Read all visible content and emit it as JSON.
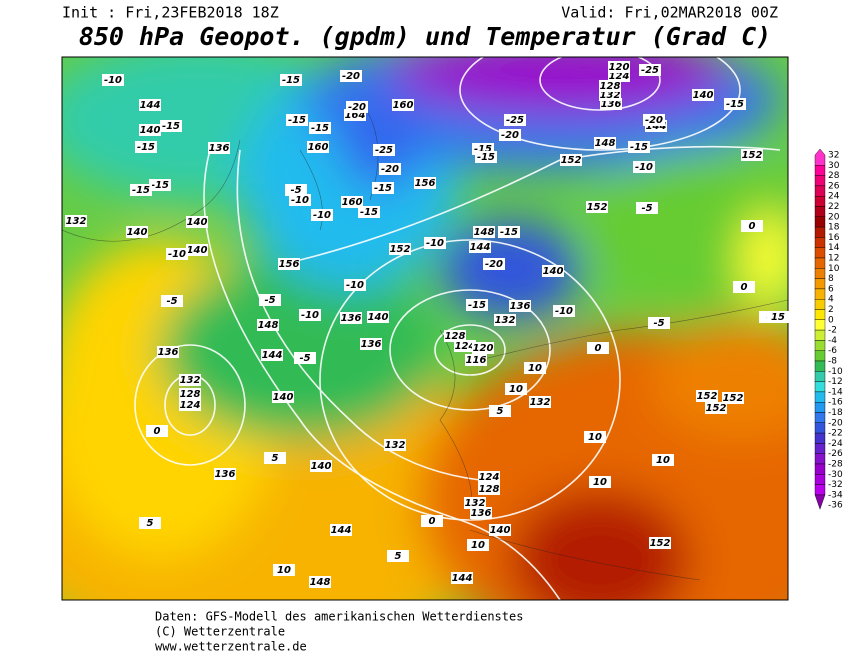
{
  "header": {
    "init": "Init : Fri,23FEB2018 18Z",
    "valid": "Valid: Fri,02MAR2018 00Z",
    "title": "850 hPa Geopot. (gpdm) und Temperatur (Grad C)"
  },
  "colorbar": {
    "levels": [
      32,
      30,
      28,
      26,
      24,
      22,
      20,
      18,
      16,
      14,
      12,
      10,
      8,
      6,
      4,
      2,
      0,
      -2,
      -4,
      -6,
      -8,
      -10,
      -12,
      -14,
      -16,
      -18,
      -20,
      -22,
      -24,
      -26,
      -28,
      -30,
      -32,
      -34,
      -36
    ],
    "colors": [
      "#ff33cc",
      "#ff0099",
      "#ee0077",
      "#dd0055",
      "#cc0033",
      "#b0001a",
      "#990000",
      "#b31a00",
      "#cc3300",
      "#dd4d00",
      "#e66600",
      "#ee8000",
      "#f59900",
      "#f7b300",
      "#f9cc00",
      "#ffe600",
      "#ffff33",
      "#ccee33",
      "#99dd33",
      "#66cc33",
      "#33bb55",
      "#33ccaa",
      "#33dddd",
      "#22bbee",
      "#2299ee",
      "#3377ee",
      "#3355dd",
      "#4433cc",
      "#6622cc",
      "#8811cc",
      "#9900cc",
      "#aa00dd",
      "#bb00ee",
      "#8800aa"
    ]
  },
  "map": {
    "height_labels": [
      144,
      140,
      136,
      140,
      140,
      140,
      156,
      152,
      148,
      144,
      140,
      136,
      132,
      128,
      124,
      120,
      116,
      132,
      128,
      124,
      136,
      144,
      140,
      140,
      136,
      136,
      140,
      144,
      144,
      148,
      132,
      152,
      152,
      152,
      152,
      152,
      152,
      152,
      148,
      140,
      136,
      136,
      132,
      124,
      128,
      132,
      160,
      160,
      160,
      156,
      164,
      140,
      144,
      148,
      136,
      132,
      128,
      124,
      120,
      132
    ],
    "temp_labels": [
      -10,
      -15,
      -20,
      -15,
      -15,
      -15,
      -15,
      -10,
      -5,
      -5,
      -5,
      -10,
      -10,
      -15,
      -15,
      -20,
      -25,
      -20,
      -15,
      -15,
      -10,
      -5,
      -10,
      -10,
      -15,
      -20,
      -15,
      -10,
      -5,
      -5,
      -10,
      -15,
      -25,
      -20,
      -15,
      -15,
      -25,
      -15,
      -20,
      0,
      0,
      0,
      0,
      0,
      5,
      5,
      5,
      10,
      10,
      10,
      5,
      10,
      10,
      10,
      10,
      0,
      15
    ]
  },
  "footer": {
    "line1": "Daten: GFS-Modell des amerikanischen Wetterdienstes",
    "line2": "(C) Wetterzentrale",
    "line3": "www.wetterzentrale.de"
  }
}
